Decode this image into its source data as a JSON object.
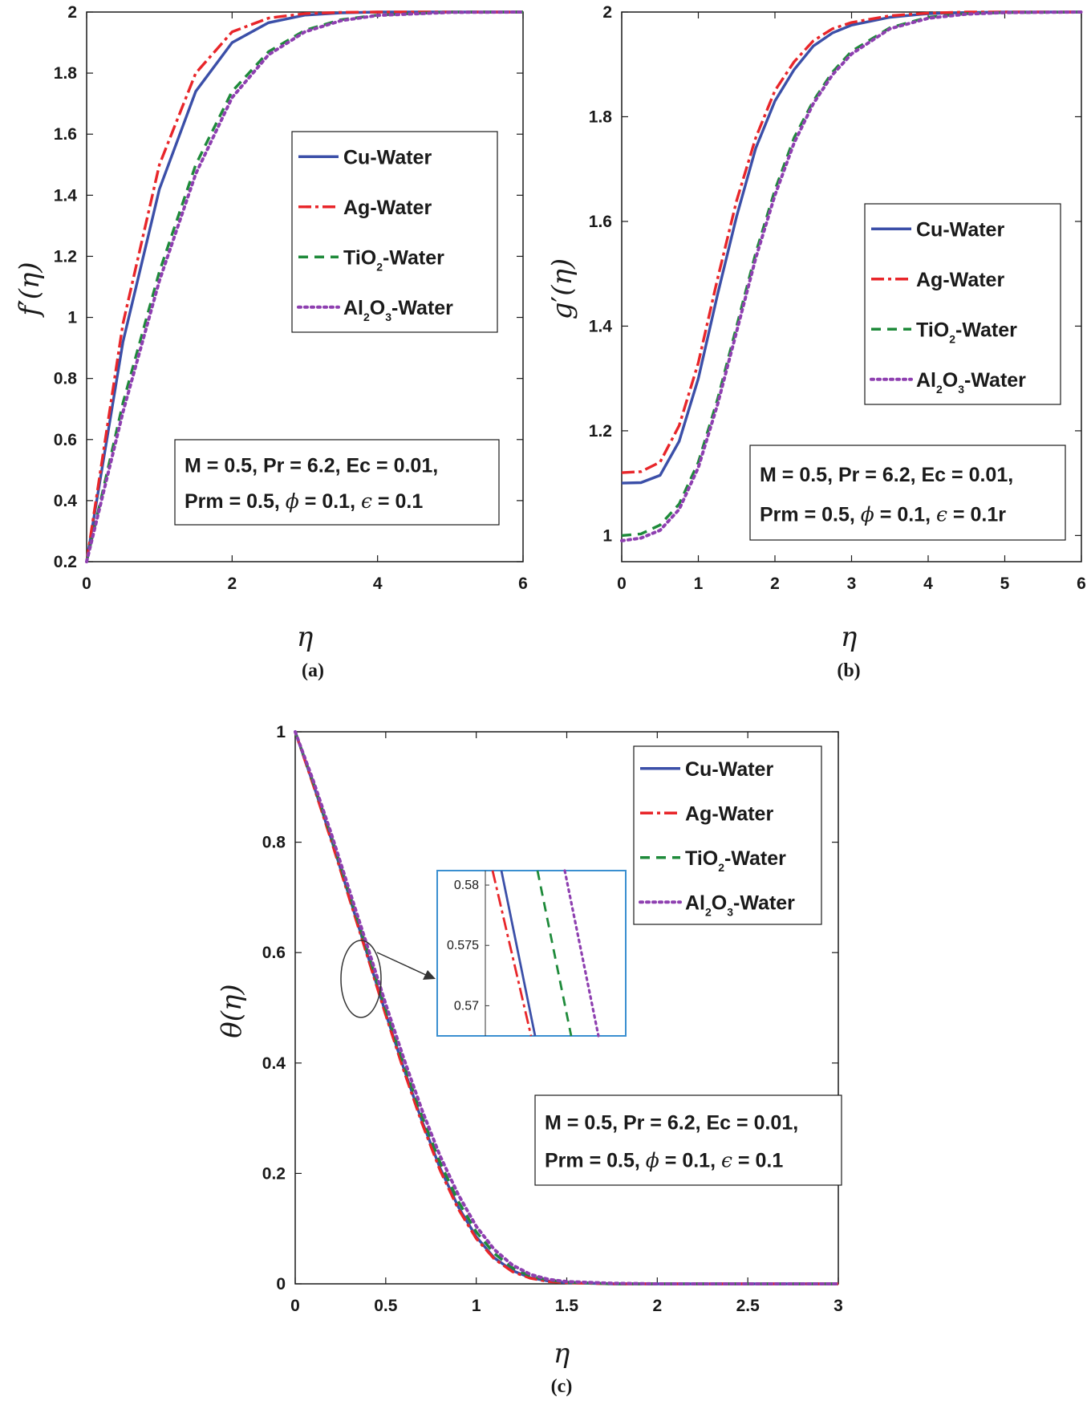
{
  "styles": {
    "colors": {
      "cu": "#3b4fa8",
      "ag": "#e8262a",
      "tio2": "#1e8a3a",
      "al2o3": "#8e3fb0",
      "inset_border": "#3a8fd0"
    }
  },
  "chart_data": [
    {
      "id": "a",
      "type": "line",
      "caption": "(a)",
      "ylabel_main": "f",
      "ylabel_arg": "(η)",
      "xlabel": "η",
      "xlim": [
        0,
        6
      ],
      "ylim": [
        0.2,
        2
      ],
      "xticks": [
        0,
        2,
        4,
        6
      ],
      "xtick_labels": [
        "0",
        "2",
        "4",
        "6"
      ],
      "yticks": [
        0.2,
        0.4,
        0.6,
        0.8,
        1,
        1.2,
        1.4,
        1.6,
        1.8,
        2
      ],
      "ytick_labels": [
        "0.2",
        "0.4",
        "0.6",
        "0.8",
        "1",
        "1.2",
        "1.4",
        "1.6",
        "1.8",
        "2"
      ],
      "x": [
        0,
        0.5,
        1,
        1.5,
        2,
        2.5,
        3,
        3.5,
        4,
        5,
        6
      ],
      "series": [
        {
          "key": "cu",
          "name": "Cu-Water",
          "values": [
            0.2,
            0.92,
            1.42,
            1.74,
            1.9,
            1.965,
            1.99,
            1.997,
            2.0,
            2.0,
            2.0
          ]
        },
        {
          "key": "ag",
          "name": "Ag-Water",
          "values": [
            0.2,
            0.98,
            1.5,
            1.8,
            1.935,
            1.98,
            1.995,
            1.999,
            2.0,
            2.0,
            2.0
          ]
        },
        {
          "key": "tio2",
          "name": "TiO2-Water",
          "values": [
            0.2,
            0.72,
            1.15,
            1.5,
            1.74,
            1.87,
            1.94,
            1.975,
            1.99,
            2.0,
            2.0
          ]
        },
        {
          "key": "al2o3",
          "name": "Al2O3-Water",
          "values": [
            0.2,
            0.69,
            1.12,
            1.47,
            1.72,
            1.86,
            1.935,
            1.972,
            1.989,
            1.999,
            2.0
          ]
        }
      ],
      "legend": [
        "Cu-Water",
        "Ag-Water",
        "TiO₂-Water",
        "Al₂O₃-Water"
      ],
      "params_line1": "M = 0.5, Pr = 6.2, Ec = 0.01,",
      "params_line2": "Prm = 0.5, ϕ = 0.1, ϵ = 0.1"
    },
    {
      "id": "b",
      "type": "line",
      "caption": "(b)",
      "ylabel_main": "g",
      "ylabel_arg": "(η)",
      "xlabel": "η",
      "xlim": [
        0,
        6
      ],
      "ylim": [
        0.95,
        2
      ],
      "xticks": [
        0,
        1,
        2,
        3,
        4,
        5,
        6
      ],
      "xtick_labels": [
        "0",
        "1",
        "2",
        "3",
        "4",
        "5",
        "6"
      ],
      "yticks": [
        1,
        1.2,
        1.4,
        1.6,
        1.8,
        2
      ],
      "ytick_labels": [
        "1",
        "1.2",
        "1.4",
        "1.6",
        "1.8",
        "2"
      ],
      "x": [
        0,
        0.25,
        0.5,
        0.75,
        1,
        1.25,
        1.5,
        1.75,
        2,
        2.25,
        2.5,
        2.75,
        3,
        3.5,
        4,
        4.5,
        5,
        6
      ],
      "series": [
        {
          "key": "cu",
          "name": "Cu-Water",
          "values": [
            1.1,
            1.101,
            1.115,
            1.18,
            1.3,
            1.46,
            1.61,
            1.74,
            1.83,
            1.89,
            1.935,
            1.96,
            1.975,
            1.99,
            1.997,
            1.999,
            2.0,
            2.0
          ]
        },
        {
          "key": "ag",
          "name": "Ag-Water",
          "values": [
            1.12,
            1.122,
            1.14,
            1.21,
            1.33,
            1.49,
            1.64,
            1.76,
            1.85,
            1.905,
            1.945,
            1.968,
            1.98,
            1.993,
            1.998,
            2.0,
            2.0,
            2.0
          ]
        },
        {
          "key": "tio2",
          "name": "TiO2-Water",
          "values": [
            1.0,
            1.003,
            1.02,
            1.06,
            1.14,
            1.26,
            1.4,
            1.54,
            1.66,
            1.76,
            1.83,
            1.885,
            1.925,
            1.97,
            1.99,
            1.997,
            1.999,
            2.0
          ]
        },
        {
          "key": "al2o3",
          "name": "Al2O3-Water",
          "values": [
            0.99,
            0.995,
            1.01,
            1.05,
            1.13,
            1.25,
            1.39,
            1.53,
            1.65,
            1.75,
            1.825,
            1.88,
            1.92,
            1.968,
            1.988,
            1.996,
            1.999,
            2.0
          ]
        }
      ],
      "legend": [
        "Cu-Water",
        "Ag-Water",
        "TiO₂-Water",
        "Al₂O₃-Water"
      ],
      "params_line1": "M = 0.5, Pr = 6.2, Ec = 0.01,",
      "params_line2": "Prm = 0.5, ϕ = 0.1, ϵ = 0.1r"
    },
    {
      "id": "c",
      "type": "line",
      "caption": "(c)",
      "ylabel_main": "θ(η)",
      "xlabel": "η",
      "xlim": [
        0,
        3
      ],
      "ylim": [
        0,
        1
      ],
      "xticks": [
        0,
        0.5,
        1,
        1.5,
        2,
        2.5,
        3
      ],
      "xtick_labels": [
        "0",
        "0.5",
        "1",
        "1.5",
        "2",
        "2.5",
        "3"
      ],
      "yticks": [
        0,
        0.2,
        0.4,
        0.6,
        0.8,
        1
      ],
      "ytick_labels": [
        "0",
        "0.2",
        "0.4",
        "0.6",
        "0.8",
        "1"
      ],
      "x": [
        0,
        0.1,
        0.2,
        0.3,
        0.4,
        0.5,
        0.6,
        0.7,
        0.8,
        0.9,
        1.0,
        1.1,
        1.2,
        1.3,
        1.4,
        1.5,
        1.75,
        2.0,
        2.5,
        3.0
      ],
      "series": [
        {
          "key": "cu",
          "name": "Cu-Water",
          "values": [
            1,
            0.905,
            0.805,
            0.7,
            0.595,
            0.49,
            0.39,
            0.295,
            0.21,
            0.14,
            0.085,
            0.047,
            0.024,
            0.011,
            0.005,
            0.002,
            0.0,
            0.0,
            0.0,
            0.0
          ]
        },
        {
          "key": "ag",
          "name": "Ag-Water",
          "values": [
            1,
            0.903,
            0.802,
            0.697,
            0.592,
            0.487,
            0.386,
            0.291,
            0.206,
            0.136,
            0.082,
            0.045,
            0.022,
            0.01,
            0.004,
            0.002,
            0.0,
            0.0,
            0.0,
            0.0
          ]
        },
        {
          "key": "tio2",
          "name": "TiO2-Water",
          "values": [
            1,
            0.908,
            0.81,
            0.706,
            0.602,
            0.498,
            0.398,
            0.304,
            0.22,
            0.15,
            0.094,
            0.055,
            0.029,
            0.014,
            0.007,
            0.003,
            0.0,
            0.0,
            0.0,
            0.0
          ]
        },
        {
          "key": "al2o3",
          "name": "Al2O3-Water",
          "values": [
            1,
            0.911,
            0.815,
            0.712,
            0.61,
            0.507,
            0.408,
            0.315,
            0.232,
            0.162,
            0.104,
            0.062,
            0.034,
            0.017,
            0.008,
            0.004,
            0.001,
            0.0,
            0.0,
            0.0
          ]
        }
      ],
      "legend": [
        "Cu-Water",
        "Ag-Water",
        "TiO₂-Water",
        "Al₂O₃-Water"
      ],
      "params_line1": "M = 0.5, Pr = 6.2, Ec = 0.01,",
      "params_line2": "Prm = 0.5, ϕ = 0.1, ϵ = 0.1",
      "inset": {
        "yticks": [
          0.58,
          0.575,
          0.57
        ],
        "ytick_labels": [
          "0.58",
          "0.575",
          "0.57"
        ],
        "ylim": [
          0.5675,
          0.5812
        ]
      }
    }
  ]
}
